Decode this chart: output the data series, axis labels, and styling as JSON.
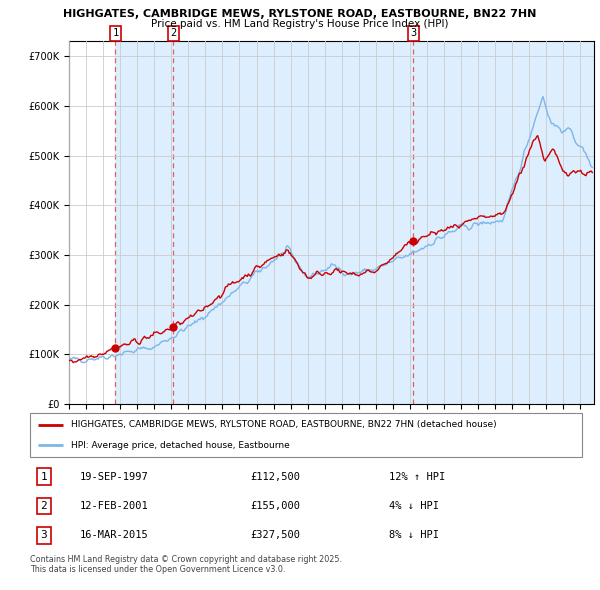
{
  "title1": "HIGHGATES, CAMBRIDGE MEWS, RYLSTONE ROAD, EASTBOURNE, BN22 7HN",
  "title2": "Price paid vs. HM Land Registry's House Price Index (HPI)",
  "legend_label1": "HIGHGATES, CAMBRIDGE MEWS, RYLSTONE ROAD, EASTBOURNE, BN22 7HN (detached house)",
  "legend_label2": "HPI: Average price, detached house, Eastbourne",
  "footer": "Contains HM Land Registry data © Crown copyright and database right 2025.\nThis data is licensed under the Open Government Licence v3.0.",
  "sale_points": [
    {
      "num": 1,
      "date": "19-SEP-1997",
      "price": 112500,
      "year": 1997.72,
      "label": "12% ↑ HPI"
    },
    {
      "num": 2,
      "date": "12-FEB-2001",
      "price": 155000,
      "year": 2001.12,
      "label": "4% ↓ HPI"
    },
    {
      "num": 3,
      "date": "16-MAR-2015",
      "price": 327500,
      "year": 2015.21,
      "label": "8% ↓ HPI"
    }
  ],
  "hpi_color": "#7eb6e8",
  "price_color": "#cc0000",
  "sale_marker_color": "#cc0000",
  "dashed_line_color": "#e06060",
  "highlight_color": "#ddeeff",
  "background_color": "#ffffff",
  "grid_color": "#cccccc",
  "ylim": [
    0,
    730000
  ],
  "xlim_start": 1995.0,
  "xlim_end": 2025.8,
  "yticks": [
    0,
    100000,
    200000,
    300000,
    400000,
    500000,
    600000,
    700000
  ],
  "xticks": [
    1995,
    1996,
    1997,
    1998,
    1999,
    2000,
    2001,
    2002,
    2003,
    2004,
    2005,
    2006,
    2007,
    2008,
    2009,
    2010,
    2011,
    2012,
    2013,
    2014,
    2015,
    2016,
    2017,
    2018,
    2019,
    2020,
    2021,
    2022,
    2023,
    2024,
    2025
  ]
}
